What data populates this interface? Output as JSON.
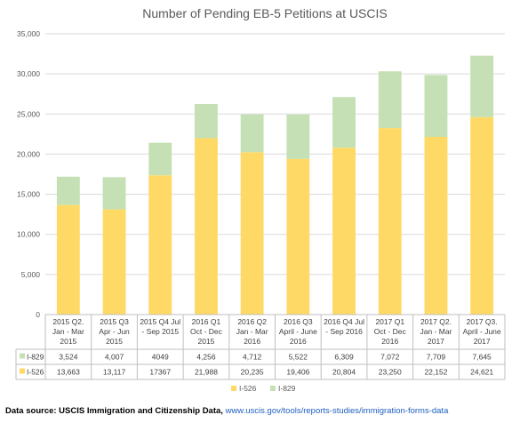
{
  "chart_data": {
    "type": "bar",
    "stacked": true,
    "title": "Number of Pending EB-5 Petitions at USCIS",
    "categories": [
      [
        "2015 Q2.",
        "Jan - Mar",
        "2015"
      ],
      [
        "2015 Q3",
        "Apr - Jun",
        "2015"
      ],
      [
        "2015 Q4 Jul",
        "- Sep 2015",
        ""
      ],
      [
        "2016 Q1",
        "Oct - Dec",
        "2015"
      ],
      [
        "2016 Q2",
        "Jan - Mar",
        "2016"
      ],
      [
        "2016 Q3",
        "April - June",
        "2016"
      ],
      [
        "2016 Q4 Jul",
        "- Sep 2016",
        ""
      ],
      [
        "2017 Q1",
        "Oct - Dec",
        "2016"
      ],
      [
        "2017 Q2.",
        "Jan - Mar",
        "2017"
      ],
      [
        "2017 Q3.",
        "April - June",
        "2017"
      ]
    ],
    "series": [
      {
        "name": "I-526",
        "color": "#FFD966",
        "values": [
          13663,
          13117,
          17367,
          21988,
          20235,
          19406,
          20804,
          23250,
          22152,
          24621
        ],
        "labels": [
          "13,663",
          "13,117",
          "17367",
          "21,988",
          "20,235",
          "19,406",
          "20,804",
          "23,250",
          "22,152",
          "24,621"
        ]
      },
      {
        "name": "I-829",
        "color": "#C5E0B4",
        "values": [
          3524,
          4007,
          4049,
          4256,
          4712,
          5522,
          6309,
          7072,
          7709,
          7645
        ],
        "labels": [
          "3,524",
          "4,007",
          "4049",
          "4,256",
          "4,712",
          "5,522",
          "6,309",
          "7,072",
          "7,709",
          "7,645"
        ]
      }
    ],
    "table_row_order": [
      "I-829",
      "I-526"
    ],
    "yticks": [
      "0",
      "5,000",
      "10,000",
      "15,000",
      "20,000",
      "25,000",
      "30,000",
      "35,000"
    ],
    "ylim": [
      0,
      35000
    ],
    "grid": true,
    "legend": "bottom"
  },
  "source": {
    "label": "Data source: USCIS Immigration and Citizenship Data,",
    "link": "www.uscis.gov/tools/reports-studies/immigration-forms-data"
  }
}
